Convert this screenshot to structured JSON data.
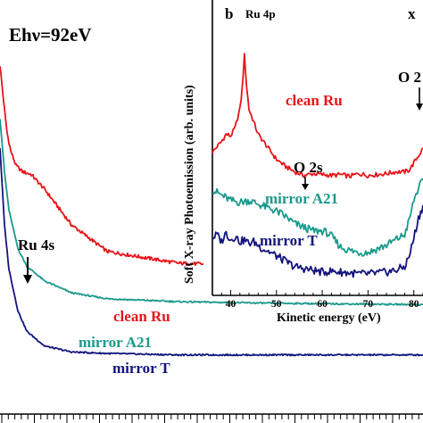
{
  "main_plot": {
    "photon_energy_label": "Ehν=92eV",
    "peak_annotation": "Ru 4s",
    "curve_labels": [
      "clean Ru",
      "mirror A21",
      "mirror T"
    ]
  },
  "inset": {
    "panel_letter": "b",
    "corner_letter": "x",
    "title": "Ru 4p",
    "xlabel": "Kinetic energy (eV)",
    "ylabel": "Soft X-ray Photoemission (arb. units)",
    "xticks": [
      "40",
      "50",
      "60",
      "70",
      "80"
    ],
    "annotations": [
      "O 2s",
      "O 2"
    ],
    "curve_labels": [
      "clean Ru",
      "mirror A21",
      "mirror T"
    ]
  },
  "colors": {
    "clean_ru": "#e8141a",
    "mirror_a21": "#1a9a8c",
    "mirror_t": "#14147e"
  },
  "chart_data": [
    {
      "type": "line",
      "title": "",
      "xlabel": "",
      "ylabel": "",
      "annotations": [
        "Ehν=92eV",
        "Ru 4s"
      ],
      "series": [
        {
          "name": "clean Ru",
          "x": [
            0,
            2,
            5,
            8,
            12,
            18,
            25,
            35,
            50,
            80,
            120,
            200,
            300,
            474
          ],
          "y": [
            11.8,
            11.2,
            10.3,
            9.5,
            8.9,
            8.4,
            8.2,
            8.1,
            7.6,
            6.4,
            5.5,
            5.1,
            5.0,
            4.9
          ]
        },
        {
          "name": "mirror A21",
          "x": [
            0,
            5,
            10,
            20,
            30,
            50,
            80,
            120,
            200,
            300,
            474
          ],
          "y": [
            10.0,
            8.2,
            6.9,
            5.6,
            5.0,
            4.5,
            4.1,
            3.9,
            3.8,
            3.75,
            3.7
          ]
        },
        {
          "name": "mirror T",
          "x": [
            0,
            5,
            10,
            20,
            30,
            50,
            80,
            120,
            200,
            300,
            474
          ],
          "y": [
            9.0,
            6.4,
            4.9,
            3.5,
            2.8,
            2.3,
            2.1,
            2.05,
            2.0,
            2.0,
            2.0
          ]
        }
      ]
    },
    {
      "type": "line",
      "title": "Ru 4p",
      "xlabel": "Kinetic energy (eV)",
      "ylabel": "Soft X-ray Photoemission (arb. units)",
      "xlim": [
        36,
        82
      ],
      "xticks": [
        40,
        50,
        60,
        70,
        80
      ],
      "annotations": [
        "O 2s",
        "O 2"
      ],
      "series": [
        {
          "name": "clean Ru",
          "x": [
            36,
            38,
            39,
            40,
            41,
            42,
            42.5,
            43,
            43.5,
            44,
            45,
            46,
            48,
            50,
            52,
            54,
            56,
            58,
            60,
            62,
            64,
            66,
            68,
            70,
            72,
            74,
            76,
            78,
            79,
            80,
            81,
            82
          ],
          "y": [
            8.0,
            8.6,
            9.0,
            8.9,
            9.4,
            10.4,
            11.5,
            13.4,
            11.6,
            10.4,
            9.7,
            9.0,
            8.3,
            7.6,
            7.2,
            6.9,
            6.7,
            6.8,
            6.75,
            6.7,
            6.75,
            6.65,
            6.8,
            6.7,
            6.75,
            6.8,
            6.9,
            6.9,
            7.0,
            7.4,
            7.8,
            8.2
          ]
        },
        {
          "name": "mirror A21",
          "x": [
            36,
            38,
            40,
            42,
            44,
            46,
            48,
            50,
            52,
            54,
            56,
            58,
            60,
            61,
            62,
            64,
            66,
            68,
            70,
            72,
            74,
            76,
            78,
            79,
            80,
            81,
            82
          ],
          "y": [
            5.9,
            5.6,
            5.3,
            5.2,
            5.3,
            5.1,
            4.9,
            4.7,
            4.4,
            4.0,
            3.8,
            3.6,
            3.6,
            3.5,
            3.3,
            2.7,
            2.5,
            2.4,
            2.4,
            2.6,
            2.8,
            3.1,
            3.4,
            4.2,
            5.3,
            6.0,
            6.4
          ]
        },
        {
          "name": "mirror T",
          "x": [
            36,
            37,
            38,
            39,
            40,
            41,
            42,
            43,
            44,
            45,
            46,
            47,
            48,
            50,
            52,
            54,
            56,
            58,
            60,
            62,
            64,
            66,
            68,
            70,
            72,
            74,
            76,
            78,
            79,
            80,
            81,
            82
          ],
          "y": [
            3.2,
            3.4,
            3.0,
            3.5,
            3.1,
            3.3,
            3.0,
            3.1,
            2.9,
            3.0,
            2.8,
            2.6,
            2.5,
            2.2,
            1.9,
            1.6,
            1.5,
            1.4,
            1.3,
            1.35,
            1.3,
            1.25,
            1.2,
            1.2,
            1.25,
            1.3,
            1.4,
            1.6,
            2.2,
            3.2,
            4.3,
            5.0
          ]
        }
      ]
    }
  ]
}
